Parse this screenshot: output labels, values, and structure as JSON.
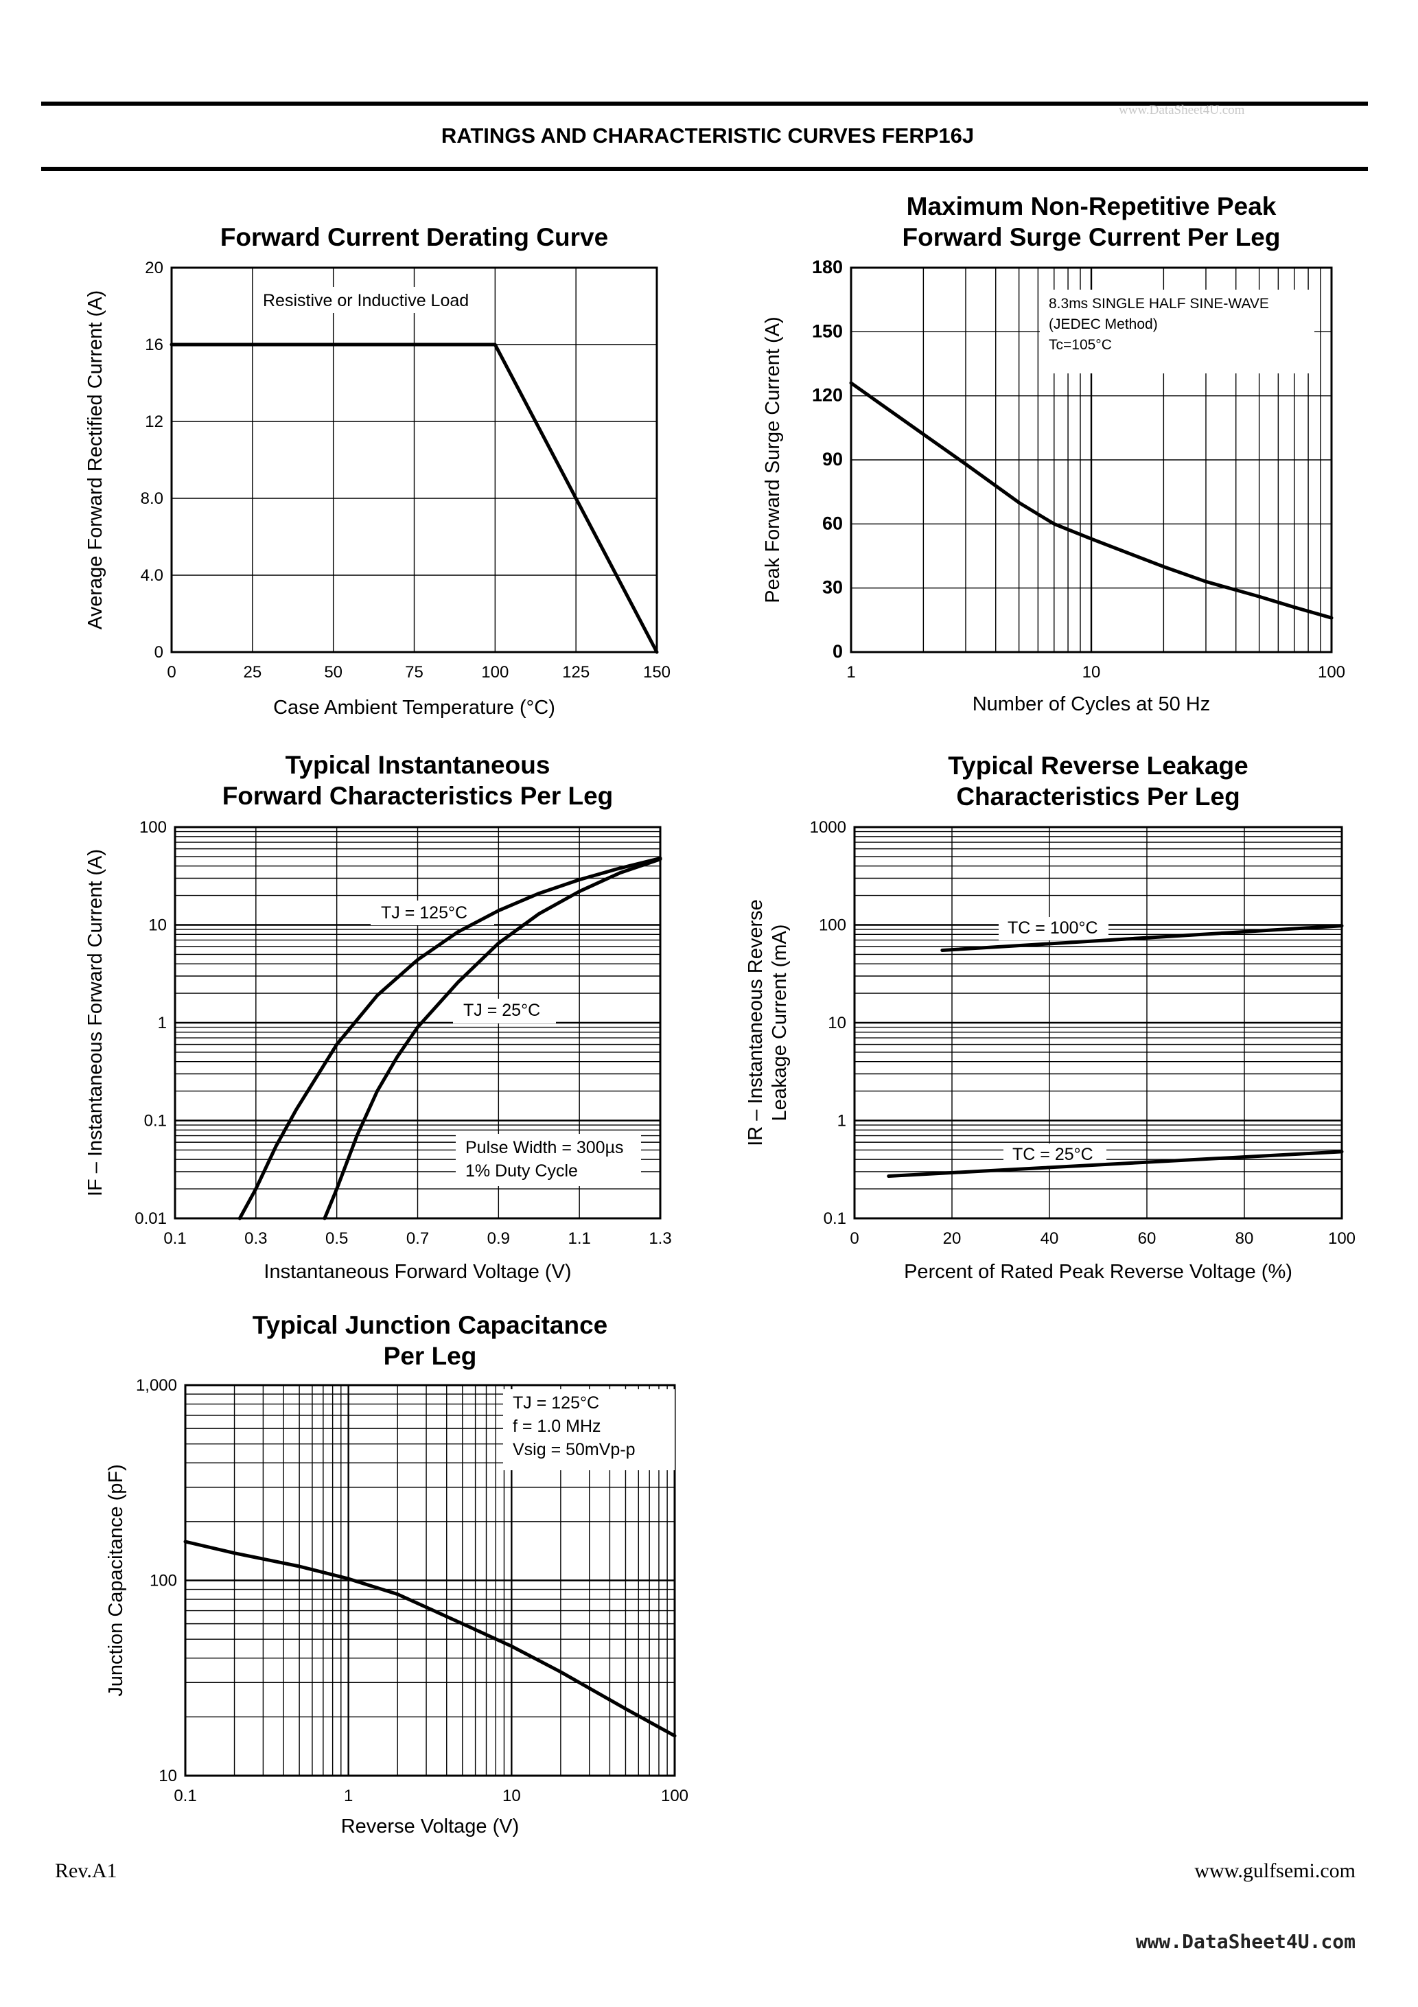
{
  "header": {
    "title": "RATINGS AND CHARACTERISTIC CURVES FERP16J",
    "watermark": "www.DataSheet4U.com"
  },
  "footer": {
    "rev": "Rev.A1",
    "website": "www.gulfsemi.com",
    "watermark": "www.DataSheet4U.com"
  },
  "chart_data": [
    {
      "id": "derating",
      "type": "line",
      "title": [
        "Forward Current Derating Curve"
      ],
      "xlabel": "Case Ambient Temperature (°C)",
      "ylabel": "Average Forward Rectified Current (A)",
      "xlim": [
        0,
        150
      ],
      "ylim": [
        0,
        20
      ],
      "xscale": "linear",
      "yscale": "linear",
      "xticks": [
        0,
        25,
        50,
        75,
        100,
        125,
        150
      ],
      "xtick_labels": [
        "0",
        "25",
        "50",
        "75",
        "100",
        "125",
        "150"
      ],
      "yticks": [
        0,
        4,
        8,
        12,
        16,
        20
      ],
      "ytick_labels": [
        "0",
        "4.0",
        "8.0",
        "12",
        "16",
        "20"
      ],
      "grid": true,
      "annotations": [
        "Resistive or Inductive Load"
      ],
      "series": [
        {
          "x": [
            0,
            100,
            150
          ],
          "y": [
            16,
            16,
            0
          ]
        }
      ]
    },
    {
      "id": "surge",
      "type": "line",
      "title": [
        "Maximum Non-Repetitive Peak",
        "Forward Surge Current Per Leg"
      ],
      "xlabel": "Number of Cycles at 50 Hz",
      "ylabel": "Peak Forward Surge Current (A)",
      "xlim": [
        1,
        100
      ],
      "ylim": [
        0,
        180
      ],
      "xscale": "log",
      "yscale": "linear",
      "xticks": [
        1,
        10,
        100
      ],
      "xtick_labels": [
        "1",
        "10",
        "100"
      ],
      "yticks": [
        0,
        30,
        60,
        90,
        120,
        150,
        180
      ],
      "ytick_labels": [
        "0",
        "30",
        "60",
        "90",
        "120",
        "150",
        "180"
      ],
      "grid": true,
      "annotations": [
        "8.3ms SINGLE HALF SINE-WAVE",
        "(JEDEC Method)",
        "Tc=105°C"
      ],
      "series": [
        {
          "x": [
            1,
            2,
            3,
            5,
            7,
            10,
            20,
            30,
            50,
            70,
            100
          ],
          "y": [
            126,
            102,
            88,
            70,
            60,
            53,
            40,
            33,
            26,
            21,
            16
          ]
        }
      ]
    },
    {
      "id": "forward",
      "type": "line",
      "title": [
        "Typical Instantaneous",
        "Forward Characteristics Per Leg"
      ],
      "xlabel": "Instantaneous Forward Voltage (V)",
      "ylabel": "IF – Instantaneous Forward Current (A)",
      "xlim": [
        0.1,
        1.3
      ],
      "ylim": [
        0.01,
        100
      ],
      "xscale": "linear",
      "yscale": "log",
      "xticks": [
        0.1,
        0.3,
        0.5,
        0.7,
        0.9,
        1.1,
        1.3
      ],
      "xtick_labels": [
        "0.1",
        "0.3",
        "0.5",
        "0.7",
        "0.9",
        "1.1",
        "1.3"
      ],
      "yticks": [
        0.01,
        0.1,
        1,
        10,
        100
      ],
      "ytick_labels": [
        "0.01",
        "0.1",
        "1",
        "10",
        "100"
      ],
      "grid": true,
      "annotations": [
        "TJ = 125°C",
        "TJ = 25°C",
        "Pulse Width = 300µs",
        "1% Duty Cycle"
      ],
      "series": [
        {
          "name": "TJ = 125°C",
          "x": [
            0.26,
            0.3,
            0.35,
            0.4,
            0.5,
            0.6,
            0.7,
            0.8,
            0.9,
            1.0,
            1.1,
            1.2,
            1.3
          ],
          "y": [
            0.01,
            0.02,
            0.055,
            0.13,
            0.6,
            1.9,
            4.4,
            8.5,
            14,
            21,
            29,
            38,
            48
          ]
        },
        {
          "name": "TJ = 25°C",
          "x": [
            0.47,
            0.5,
            0.55,
            0.6,
            0.65,
            0.7,
            0.8,
            0.9,
            1.0,
            1.1,
            1.2,
            1.3
          ],
          "y": [
            0.01,
            0.02,
            0.07,
            0.2,
            0.45,
            0.9,
            2.6,
            6.5,
            13,
            22,
            34,
            47
          ]
        }
      ]
    },
    {
      "id": "leakage",
      "type": "line",
      "title": [
        "Typical Reverse Leakage",
        "Characteristics Per Leg"
      ],
      "xlabel": "Percent of Rated Peak Reverse Voltage (%)",
      "ylabel": [
        "IR – Instantaneous Reverse",
        "Leakage Current (mA)"
      ],
      "xlim": [
        0,
        100
      ],
      "ylim": [
        0.1,
        1000
      ],
      "xscale": "linear",
      "yscale": "log",
      "xticks": [
        0,
        20,
        40,
        60,
        80,
        100
      ],
      "xtick_labels": [
        "0",
        "20",
        "40",
        "60",
        "80",
        "100"
      ],
      "yticks": [
        0.1,
        1,
        10,
        100,
        1000
      ],
      "ytick_labels": [
        "0.1",
        "1",
        "10",
        "100",
        "1000"
      ],
      "grid": true,
      "annotations": [
        "TC = 100°C",
        "TC = 25°C"
      ],
      "series": [
        {
          "name": "TC = 100°C",
          "x": [
            18,
            100
          ],
          "y": [
            55,
            98
          ]
        },
        {
          "name": "TC = 25°C",
          "x": [
            7,
            100
          ],
          "y": [
            0.27,
            0.48
          ]
        }
      ]
    },
    {
      "id": "capacitance",
      "type": "line",
      "title": [
        "Typical Junction Capacitance",
        "Per Leg"
      ],
      "xlabel": "Reverse Voltage (V)",
      "ylabel": "Junction Capacitance (pF)",
      "xlim": [
        0.1,
        100
      ],
      "ylim": [
        10,
        1000
      ],
      "xscale": "log",
      "yscale": "log",
      "xticks": [
        0.1,
        1,
        10,
        100
      ],
      "xtick_labels": [
        "0.1",
        "1",
        "10",
        "100"
      ],
      "yticks": [
        10,
        100,
        1000
      ],
      "ytick_labels": [
        "10",
        "100",
        "1,000"
      ],
      "grid": true,
      "annotations": [
        "TJ = 125°C",
        "f = 1.0 MHz",
        "Vsig = 50mVp-p"
      ],
      "series": [
        {
          "x": [
            0.1,
            0.2,
            0.5,
            1,
            2,
            5,
            10,
            20,
            50,
            100
          ],
          "y": [
            158,
            138,
            118,
            102,
            85,
            60,
            46,
            34,
            22,
            16
          ]
        }
      ]
    }
  ]
}
